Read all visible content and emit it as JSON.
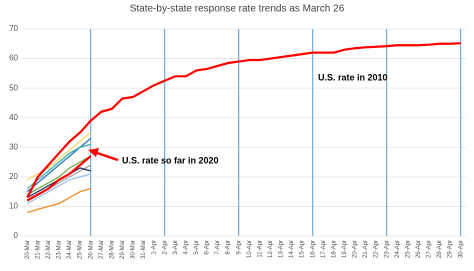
{
  "chart_data": {
    "type": "line",
    "title": "State-by-state response rate trends as March 26",
    "categories": [
      "20-Mar",
      "21-Mar",
      "22-Mar",
      "23-Mar",
      "24-Mar",
      "25-Mar",
      "26-Mar",
      "27-Mar",
      "28-Mar",
      "29-Mar",
      "30-Mar",
      "31-Mar",
      "1-Apr",
      "2-Apr",
      "3-Apr",
      "4-Apr",
      "5-Apr",
      "6-Apr",
      "7-Apr",
      "8-Apr",
      "9-Apr",
      "10-Apr",
      "11-Apr",
      "12-Apr",
      "13-Apr",
      "14-Apr",
      "15-Apr",
      "16-Apr",
      "17-Apr",
      "18-Apr",
      "19-Apr",
      "20-Apr",
      "21-Apr",
      "22-Apr",
      "23-Apr",
      "24-Apr",
      "25-Apr",
      "26-Apr",
      "27-Apr",
      "28-Apr",
      "29-Apr",
      "30-Apr"
    ],
    "ylim": [
      0,
      70
    ],
    "yticks": [
      0,
      10,
      20,
      30,
      40,
      50,
      60,
      70
    ],
    "grid": true,
    "series": [
      {
        "color": "#f08a24",
        "values": [
          8,
          9,
          10,
          11,
          13,
          15,
          16,
          null,
          null,
          null,
          null,
          null,
          null,
          null,
          null,
          null,
          null,
          null,
          null,
          null,
          null,
          null,
          null,
          null,
          null,
          null,
          null,
          null,
          null,
          null,
          null,
          null,
          null,
          null,
          null,
          null,
          null,
          null,
          null,
          null,
          null,
          null
        ]
      },
      {
        "color": "#f5d76e",
        "values": [
          19,
          21,
          23,
          26,
          29,
          32,
          35,
          null,
          null,
          null,
          null,
          null,
          null,
          null,
          null,
          null,
          null,
          null,
          null,
          null,
          null,
          null,
          null,
          null,
          null,
          null,
          null,
          null,
          null,
          null,
          null,
          null,
          null,
          null,
          null,
          null,
          null,
          null,
          null,
          null,
          null,
          null
        ]
      },
      {
        "color": "#2e75b6",
        "values": [
          15,
          18,
          21,
          24,
          27,
          30,
          33,
          null,
          null,
          null,
          null,
          null,
          null,
          null,
          null,
          null,
          null,
          null,
          null,
          null,
          null,
          null,
          null,
          null,
          null,
          null,
          null,
          null,
          null,
          null,
          null,
          null,
          null,
          null,
          null,
          null,
          null,
          null,
          null,
          null,
          null,
          null
        ]
      },
      {
        "color": "#3bb0b0",
        "values": [
          16,
          19,
          22,
          25,
          28,
          30,
          31,
          null,
          null,
          null,
          null,
          null,
          null,
          null,
          null,
          null,
          null,
          null,
          null,
          null,
          null,
          null,
          null,
          null,
          null,
          null,
          null,
          null,
          null,
          null,
          null,
          null,
          null,
          null,
          null,
          null,
          null,
          null,
          null,
          null,
          null,
          null
        ]
      },
      {
        "color": "#70ad47",
        "values": [
          14,
          16,
          18,
          20,
          23,
          25,
          27,
          null,
          null,
          null,
          null,
          null,
          null,
          null,
          null,
          null,
          null,
          null,
          null,
          null,
          null,
          null,
          null,
          null,
          null,
          null,
          null,
          null,
          null,
          null,
          null,
          null,
          null,
          null,
          null,
          null,
          null,
          null,
          null,
          null,
          null,
          null
        ]
      },
      {
        "color": "#a5a5a5",
        "values": [
          12,
          14,
          16,
          18,
          20,
          22,
          24,
          null,
          null,
          null,
          null,
          null,
          null,
          null,
          null,
          null,
          null,
          null,
          null,
          null,
          null,
          null,
          null,
          null,
          null,
          null,
          null,
          null,
          null,
          null,
          null,
          null,
          null,
          null,
          null,
          null,
          null,
          null,
          null,
          null,
          null,
          null
        ]
      },
      {
        "color": "#203864",
        "values": [
          13,
          15,
          17,
          19,
          21,
          23,
          22,
          null,
          null,
          null,
          null,
          null,
          null,
          null,
          null,
          null,
          null,
          null,
          null,
          null,
          null,
          null,
          null,
          null,
          null,
          null,
          null,
          null,
          null,
          null,
          null,
          null,
          null,
          null,
          null,
          null,
          null,
          null,
          null,
          null,
          null,
          null
        ]
      },
      {
        "color": "#9dc3e6",
        "values": [
          11,
          13,
          15,
          17,
          19,
          20,
          21,
          null,
          null,
          null,
          null,
          null,
          null,
          null,
          null,
          null,
          null,
          null,
          null,
          null,
          null,
          null,
          null,
          null,
          null,
          null,
          null,
          null,
          null,
          null,
          null,
          null,
          null,
          null,
          null,
          null,
          null,
          null,
          null,
          null,
          null,
          null
        ]
      },
      {
        "color": "#ff0000",
        "values": [
          12,
          14,
          16,
          19,
          21,
          24,
          27,
          null,
          null,
          null,
          null,
          null,
          null,
          null,
          null,
          null,
          null,
          null,
          null,
          null,
          null,
          null,
          null,
          null,
          null,
          null,
          null,
          null,
          null,
          null,
          null,
          null,
          null,
          null,
          null,
          null,
          null,
          null,
          null,
          null,
          null,
          null
        ]
      },
      {
        "color": "#ff0000",
        "values": [
          13,
          20,
          24,
          28,
          32,
          35,
          39,
          42,
          43,
          46.5,
          47,
          49,
          51,
          52.5,
          54,
          54,
          56,
          56.5,
          57.5,
          58.5,
          59,
          59.5,
          59.5,
          60,
          60.5,
          61,
          61.5,
          62,
          62,
          62,
          63,
          63.5,
          63.8,
          64,
          64.2,
          64.5,
          64.5,
          64.5,
          64.7,
          65,
          65,
          65.2
        ]
      }
    ],
    "annotations": [
      "U.S. rate in 2010",
      "U.S. rate so far in 2020"
    ]
  }
}
